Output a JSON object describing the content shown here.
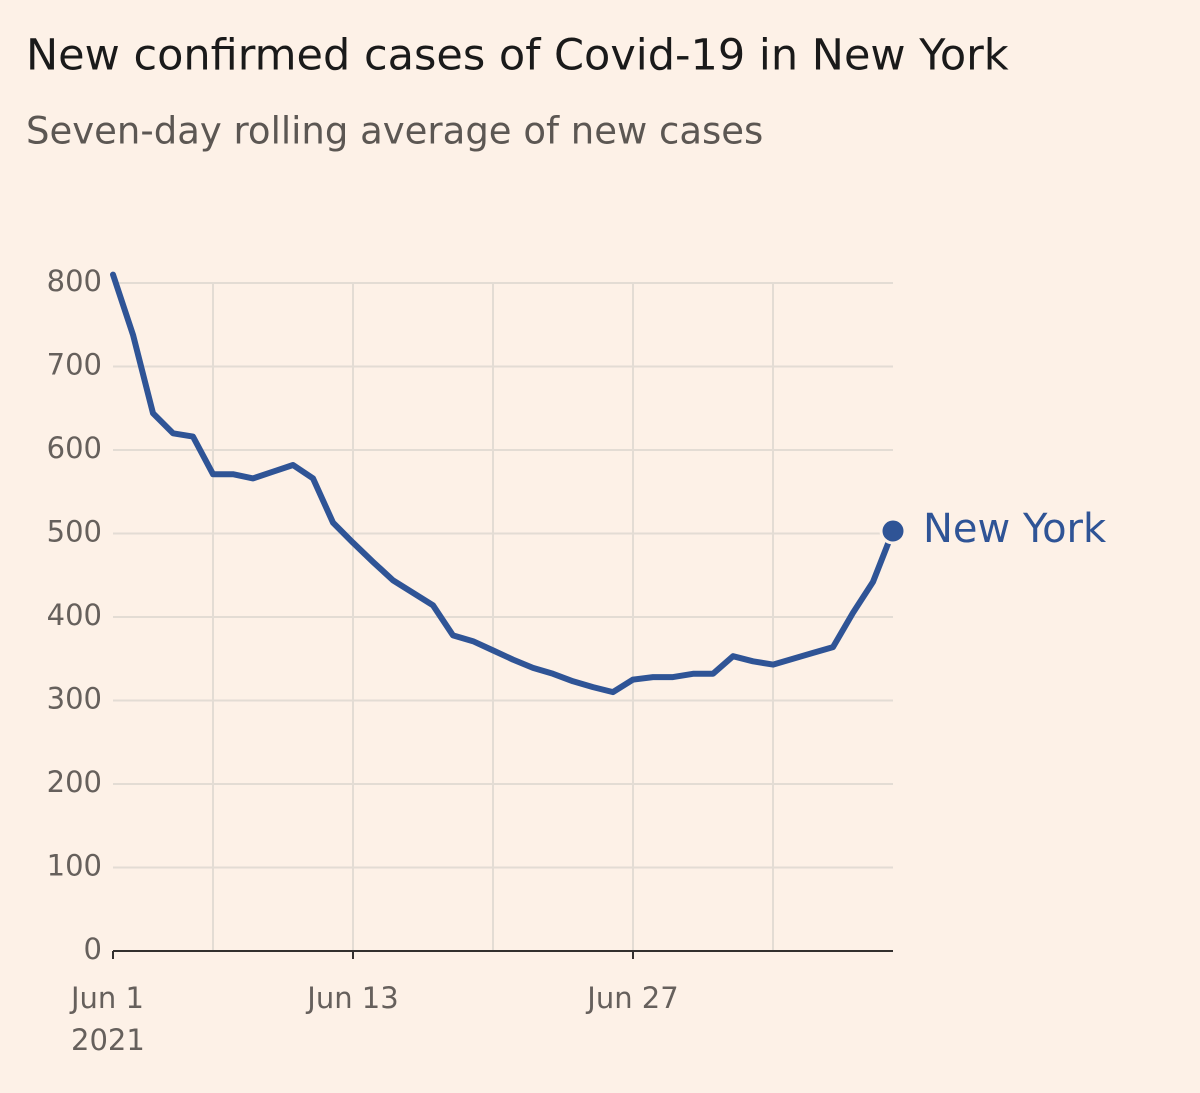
{
  "chart_data": {
    "type": "line",
    "title": "New confirmed cases of Covid-19 in New York",
    "subtitle": "Seven-day rolling average of new cases",
    "x": [
      "2021-06-01",
      "2021-06-02",
      "2021-06-03",
      "2021-06-04",
      "2021-06-05",
      "2021-06-06",
      "2021-06-07",
      "2021-06-08",
      "2021-06-09",
      "2021-06-10",
      "2021-06-11",
      "2021-06-12",
      "2021-06-13",
      "2021-06-14",
      "2021-06-15",
      "2021-06-16",
      "2021-06-17",
      "2021-06-18",
      "2021-06-19",
      "2021-06-20",
      "2021-06-21",
      "2021-06-22",
      "2021-06-23",
      "2021-06-24",
      "2021-06-25",
      "2021-06-26",
      "2021-06-27",
      "2021-06-28",
      "2021-06-29",
      "2021-06-30",
      "2021-07-01",
      "2021-07-02",
      "2021-07-03",
      "2021-07-04",
      "2021-07-05",
      "2021-07-06",
      "2021-07-07",
      "2021-07-08",
      "2021-07-09",
      "2021-07-10"
    ],
    "series": [
      {
        "name": "New York",
        "color": "#2f5496",
        "values": [
          810,
          738,
          644,
          620,
          616,
          571,
          571,
          566,
          574,
          582,
          566,
          513,
          489,
          466,
          444,
          429,
          414,
          378,
          371,
          360,
          349,
          339,
          332,
          323,
          316,
          310,
          325,
          328,
          328,
          332,
          332,
          353,
          347,
          343,
          350,
          357,
          364,
          405,
          442,
          503
        ]
      }
    ],
    "xlim": [
      "2021-06-01",
      "2021-07-10"
    ],
    "xticks": [
      {
        "value": "2021-06-01",
        "label": "Jun 1"
      },
      {
        "value": "2021-06-13",
        "label": "Jun 13"
      },
      {
        "value": "2021-06-27",
        "label": "Jun 27"
      }
    ],
    "year_label": "2021",
    "xgrid": [
      "2021-06-06",
      "2021-06-13",
      "2021-06-20",
      "2021-06-27",
      "2021-07-04"
    ],
    "ylim": [
      0,
      800
    ],
    "yticks": [
      0,
      100,
      200,
      300,
      400,
      500,
      600,
      700,
      800
    ],
    "grid": true
  }
}
